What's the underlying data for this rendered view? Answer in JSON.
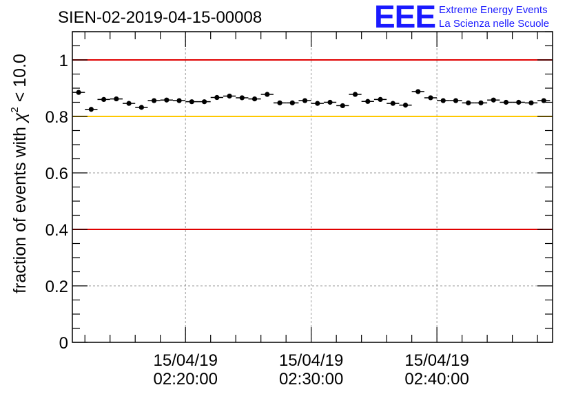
{
  "chart_data": {
    "type": "scatter",
    "title": "SIEN-02-2019-04-15-00008",
    "xlabel": "",
    "ylabel": "fraction of events with χ² < 10.0",
    "ylabel_parts": {
      "prefix": "fraction of events with ",
      "symbol": "χ",
      "superscript": "2",
      "suffix": " < 10.0"
    },
    "ylim": [
      0,
      1.1
    ],
    "yticks": [
      0,
      0.2,
      0.4,
      0.6,
      0.8,
      1
    ],
    "ytick_labels": [
      "0",
      "0.2",
      "0.4",
      "0.6",
      "0.8",
      "1"
    ],
    "xlim_minutes": [
      0.0,
      38.2
    ],
    "xticks_minutes": [
      9.0,
      19.0,
      29.0
    ],
    "xtick_labels": [
      {
        "date": "15/04/19",
        "time": "02:20:00"
      },
      {
        "date": "15/04/19",
        "time": "02:30:00"
      },
      {
        "date": "15/04/19",
        "time": "02:40:00"
      }
    ],
    "grid": true,
    "reference_lines": [
      {
        "y": 1.0,
        "color": "#e00000"
      },
      {
        "y": 0.8,
        "color": "#ffc800"
      },
      {
        "y": 0.4,
        "color": "#e00000"
      }
    ],
    "point_color": "#000000",
    "x_halfwidth_minutes": 0.5,
    "x_minutes": [
      0.5,
      1.5,
      2.5,
      3.5,
      4.5,
      5.5,
      6.5,
      7.5,
      8.5,
      9.5,
      10.5,
      11.5,
      12.5,
      13.5,
      14.5,
      15.5,
      16.5,
      17.5,
      18.5,
      19.5,
      20.5,
      21.5,
      22.5,
      23.5,
      24.5,
      25.5,
      26.5,
      27.5,
      28.5,
      29.5,
      30.5,
      31.5,
      32.5,
      33.5,
      34.5,
      35.5,
      36.5,
      37.5
    ],
    "values": [
      0.885,
      0.825,
      0.86,
      0.862,
      0.846,
      0.832,
      0.856,
      0.858,
      0.856,
      0.852,
      0.852,
      0.867,
      0.872,
      0.866,
      0.862,
      0.878,
      0.848,
      0.848,
      0.856,
      0.846,
      0.85,
      0.838,
      0.878,
      0.853,
      0.86,
      0.846,
      0.84,
      0.888,
      0.866,
      0.856,
      0.856,
      0.848,
      0.848,
      0.858,
      0.85,
      0.85,
      0.848,
      0.856
    ]
  },
  "logo": {
    "mark": "EEE",
    "line1": "Extreme Energy Events",
    "line2": "La Scienza nelle Scuole",
    "color": "#1a1aff"
  }
}
